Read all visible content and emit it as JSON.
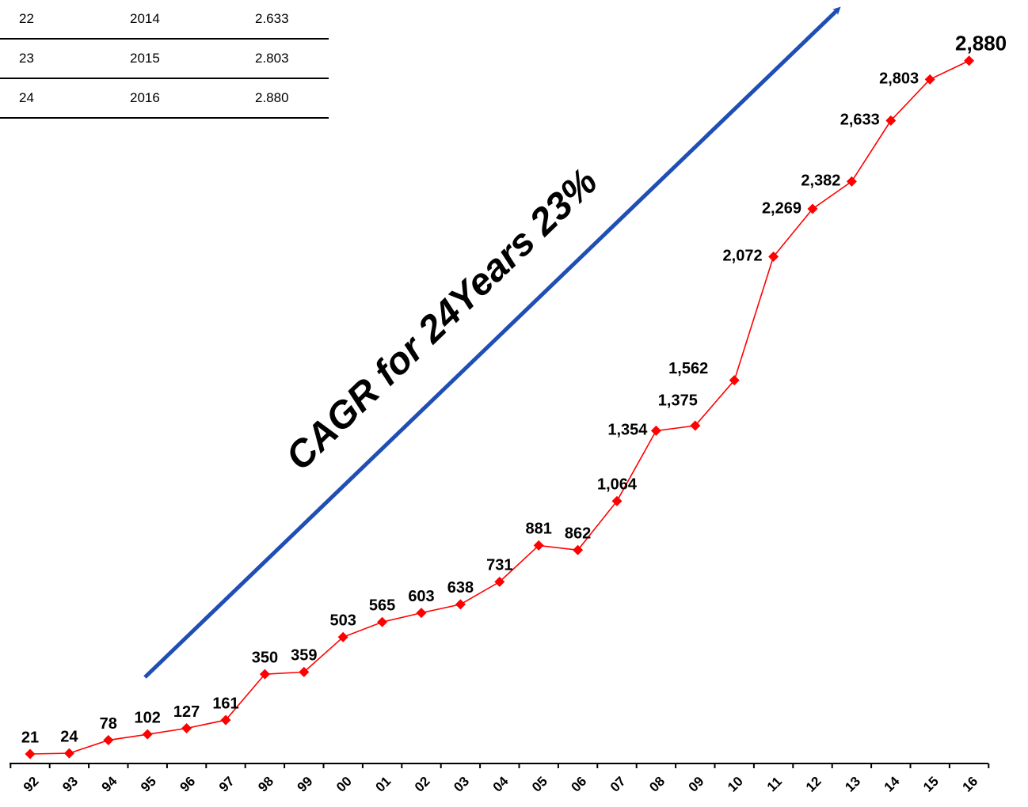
{
  "table": {
    "rows": [
      [
        "22",
        "2014",
        "2.633"
      ],
      [
        "23",
        "2015",
        "2.803"
      ],
      [
        "24",
        "2016",
        "2.880"
      ]
    ]
  },
  "chart_data": {
    "type": "line",
    "x": [
      "92",
      "93",
      "94",
      "95",
      "96",
      "97",
      "98",
      "99",
      "00",
      "01",
      "02",
      "03",
      "04",
      "05",
      "06",
      "07",
      "08",
      "09",
      "10",
      "11",
      "12",
      "13",
      "14",
      "15",
      "16"
    ],
    "series": [
      {
        "values": [
          21,
          24,
          78,
          102,
          127,
          161,
          350,
          359,
          503,
          565,
          603,
          638,
          731,
          881,
          862,
          1064,
          1354,
          1375,
          1562,
          2072,
          2269,
          2382,
          2633,
          2803,
          2880
        ]
      }
    ],
    "data_labels": [
      "21",
      "24",
      "78",
      "102",
      "127",
      "161",
      "350",
      "359",
      "503",
      "565",
      "603",
      "638",
      "731",
      "881",
      "862",
      "1,064",
      "1,354",
      "1,375",
      "1,562",
      "2,072",
      "2,269",
      "2,382",
      "2,633",
      "2,803",
      "2,880"
    ],
    "annotation": "CAGR for 24Years 23%",
    "ylim": [
      0,
      3000
    ],
    "grid": false,
    "colors": {
      "series": "#ff0000",
      "arrow": "#1f4eb4",
      "axis": "#000000"
    }
  }
}
